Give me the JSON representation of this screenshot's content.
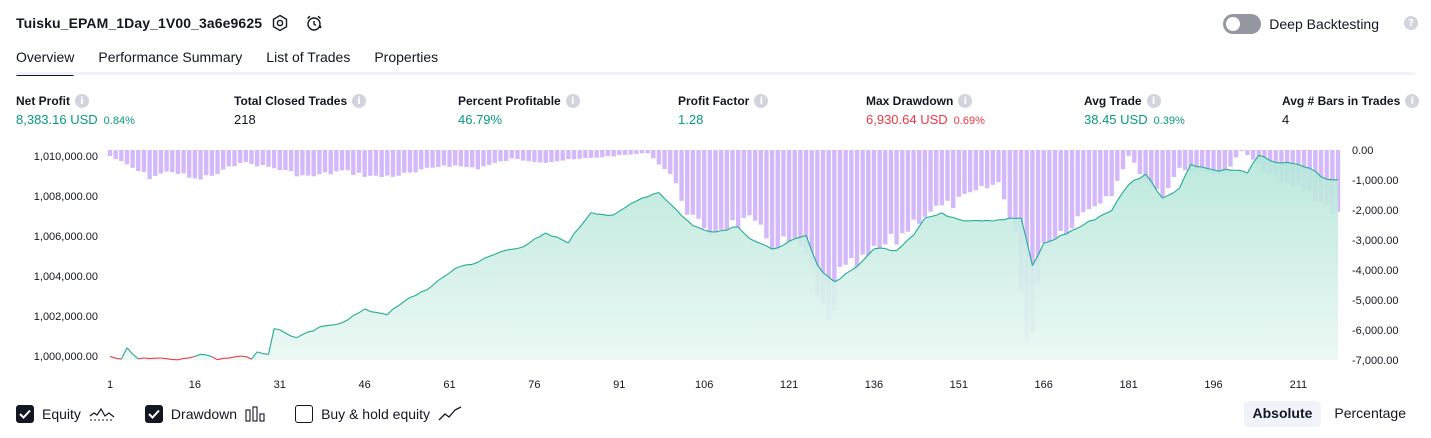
{
  "header": {
    "strategy_name": "Tuisku_EPAM_1Day_1V00_3a6e9625",
    "deep_backtesting_label": "Deep Backtesting",
    "deep_backtesting_on": false
  },
  "tabs": [
    {
      "label": "Overview",
      "active": true
    },
    {
      "label": "Performance Summary",
      "active": false
    },
    {
      "label": "List of Trades",
      "active": false
    },
    {
      "label": "Properties",
      "active": false
    }
  ],
  "metrics": [
    {
      "label": "Net Profit",
      "value": "8,383.16 USD",
      "pct": "0.84%",
      "color": "green"
    },
    {
      "label": "Total Closed Trades",
      "value": "218",
      "pct": "",
      "color": "dark"
    },
    {
      "label": "Percent Profitable",
      "value": "46.79%",
      "pct": "",
      "color": "green"
    },
    {
      "label": "Profit Factor",
      "value": "1.28",
      "pct": "",
      "color": "green"
    },
    {
      "label": "Max Drawdown",
      "value": "6,930.64 USD",
      "pct": "0.69%",
      "color": "red"
    },
    {
      "label": "Avg Trade",
      "value": "38.45 USD",
      "pct": "0.39%",
      "color": "green"
    },
    {
      "label": "Avg # Bars in Trades",
      "value": "4",
      "pct": "",
      "color": "dark"
    }
  ],
  "legend": {
    "equity_label": "Equity",
    "equity_checked": true,
    "drawdown_label": "Drawdown",
    "drawdown_checked": true,
    "buyhold_label": "Buy & hold equity",
    "buyhold_checked": false
  },
  "modes": {
    "absolute": "Absolute",
    "percentage": "Percentage",
    "active": "absolute"
  },
  "colors": {
    "equity_line": "#22ab94",
    "equity_fill": "#cdeee6",
    "equity_loss_line": "#f23645",
    "drawdown_bar": "#d3b8fb",
    "drawdown_bar_dark": "#c2a2f6",
    "text": "#131722",
    "positive": "#089981",
    "negative": "#f23645"
  },
  "chart_data": {
    "type": "area",
    "x_ticks": [
      "1",
      "16",
      "31",
      "46",
      "61",
      "76",
      "91",
      "106",
      "121",
      "136",
      "151",
      "166",
      "181",
      "196",
      "211"
    ],
    "left_axis": {
      "label": "",
      "ticks": [
        "1,010,000.00",
        "1,008,000.00",
        "1,006,000.00",
        "1,004,000.00",
        "1,002,000.00",
        "1,000,000.00"
      ],
      "range": [
        999800,
        1010400
      ]
    },
    "right_axis": {
      "label": "",
      "ticks": [
        "0.00",
        "-1,000.00",
        "-2,000.00",
        "-3,000.00",
        "-4,000.00",
        "-5,000.00",
        "-6,000.00",
        "-7,000.00"
      ],
      "range": [
        -7000,
        0
      ]
    },
    "x_range": [
      1,
      218
    ],
    "equity_keypoints": [
      [
        1,
        1000000
      ],
      [
        3,
        999800
      ],
      [
        4,
        1000400
      ],
      [
        6,
        999900
      ],
      [
        10,
        999900
      ],
      [
        14,
        999850
      ],
      [
        18,
        1000100
      ],
      [
        20,
        999850
      ],
      [
        23,
        1000000
      ],
      [
        26,
        999900
      ],
      [
        27,
        1000200
      ],
      [
        29,
        1000100
      ],
      [
        30,
        1001400
      ],
      [
        34,
        1000900
      ],
      [
        38,
        1001400
      ],
      [
        42,
        1001700
      ],
      [
        46,
        1002300
      ],
      [
        50,
        1002100
      ],
      [
        54,
        1002900
      ],
      [
        58,
        1003500
      ],
      [
        62,
        1004400
      ],
      [
        66,
        1004700
      ],
      [
        70,
        1005200
      ],
      [
        74,
        1005500
      ],
      [
        78,
        1006100
      ],
      [
        82,
        1005700
      ],
      [
        86,
        1007200
      ],
      [
        90,
        1007000
      ],
      [
        94,
        1007800
      ],
      [
        98,
        1008200
      ],
      [
        100,
        1007600
      ],
      [
        104,
        1006500
      ],
      [
        108,
        1006200
      ],
      [
        112,
        1006500
      ],
      [
        114,
        1005900
      ],
      [
        118,
        1005300
      ],
      [
        120,
        1005600
      ],
      [
        124,
        1006000
      ],
      [
        126,
        1004500
      ],
      [
        129,
        1003700
      ],
      [
        132,
        1004300
      ],
      [
        134,
        1004700
      ],
      [
        136,
        1005400
      ],
      [
        140,
        1005300
      ],
      [
        143,
        1006100
      ],
      [
        145,
        1006900
      ],
      [
        148,
        1007100
      ],
      [
        152,
        1006800
      ],
      [
        157,
        1006800
      ],
      [
        162,
        1006900
      ],
      [
        164,
        1004500
      ],
      [
        166,
        1005600
      ],
      [
        169,
        1006000
      ],
      [
        172,
        1006400
      ],
      [
        174,
        1006700
      ],
      [
        178,
        1007300
      ],
      [
        181,
        1008600
      ],
      [
        184,
        1009100
      ],
      [
        187,
        1007900
      ],
      [
        190,
        1008400
      ],
      [
        192,
        1009600
      ],
      [
        196,
        1009300
      ],
      [
        199,
        1009300
      ],
      [
        202,
        1009200
      ],
      [
        204,
        1010000
      ],
      [
        207,
        1009700
      ],
      [
        210,
        1009600
      ],
      [
        213,
        1009400
      ],
      [
        216,
        1008800
      ],
      [
        218,
        1008800
      ]
    ],
    "drawdown_keypoints": [
      [
        1,
        -200
      ],
      [
        5,
        -600
      ],
      [
        8,
        -900
      ],
      [
        12,
        -700
      ],
      [
        16,
        -1000
      ],
      [
        20,
        -800
      ],
      [
        24,
        -400
      ],
      [
        30,
        -600
      ],
      [
        36,
        -900
      ],
      [
        42,
        -700
      ],
      [
        48,
        -900
      ],
      [
        54,
        -800
      ],
      [
        60,
        -500
      ],
      [
        66,
        -600
      ],
      [
        72,
        -300
      ],
      [
        78,
        -400
      ],
      [
        84,
        -300
      ],
      [
        90,
        -200
      ],
      [
        96,
        -100
      ],
      [
        100,
        -800
      ],
      [
        103,
        -2000
      ],
      [
        106,
        -2800
      ],
      [
        110,
        -2500
      ],
      [
        114,
        -2400
      ],
      [
        118,
        -3100
      ],
      [
        121,
        -3100
      ],
      [
        124,
        -3500
      ],
      [
        126,
        -5000
      ],
      [
        128,
        -5900
      ],
      [
        130,
        -4200
      ],
      [
        134,
        -3800
      ],
      [
        137,
        -3300
      ],
      [
        140,
        -3000
      ],
      [
        143,
        -2400
      ],
      [
        146,
        -2000
      ],
      [
        150,
        -1800
      ],
      [
        154,
        -1400
      ],
      [
        158,
        -1100
      ],
      [
        161,
        -2700
      ],
      [
        163,
        -6900
      ],
      [
        166,
        -3100
      ],
      [
        170,
        -2600
      ],
      [
        174,
        -1900
      ],
      [
        178,
        -1400
      ],
      [
        181,
        -200
      ],
      [
        184,
        -1000
      ],
      [
        187,
        -1500
      ],
      [
        190,
        -600
      ],
      [
        194,
        -700
      ],
      [
        198,
        -800
      ],
      [
        201,
        0
      ],
      [
        204,
        -500
      ],
      [
        208,
        -1100
      ],
      [
        212,
        -1300
      ],
      [
        215,
        -1700
      ],
      [
        218,
        -2200
      ]
    ]
  }
}
